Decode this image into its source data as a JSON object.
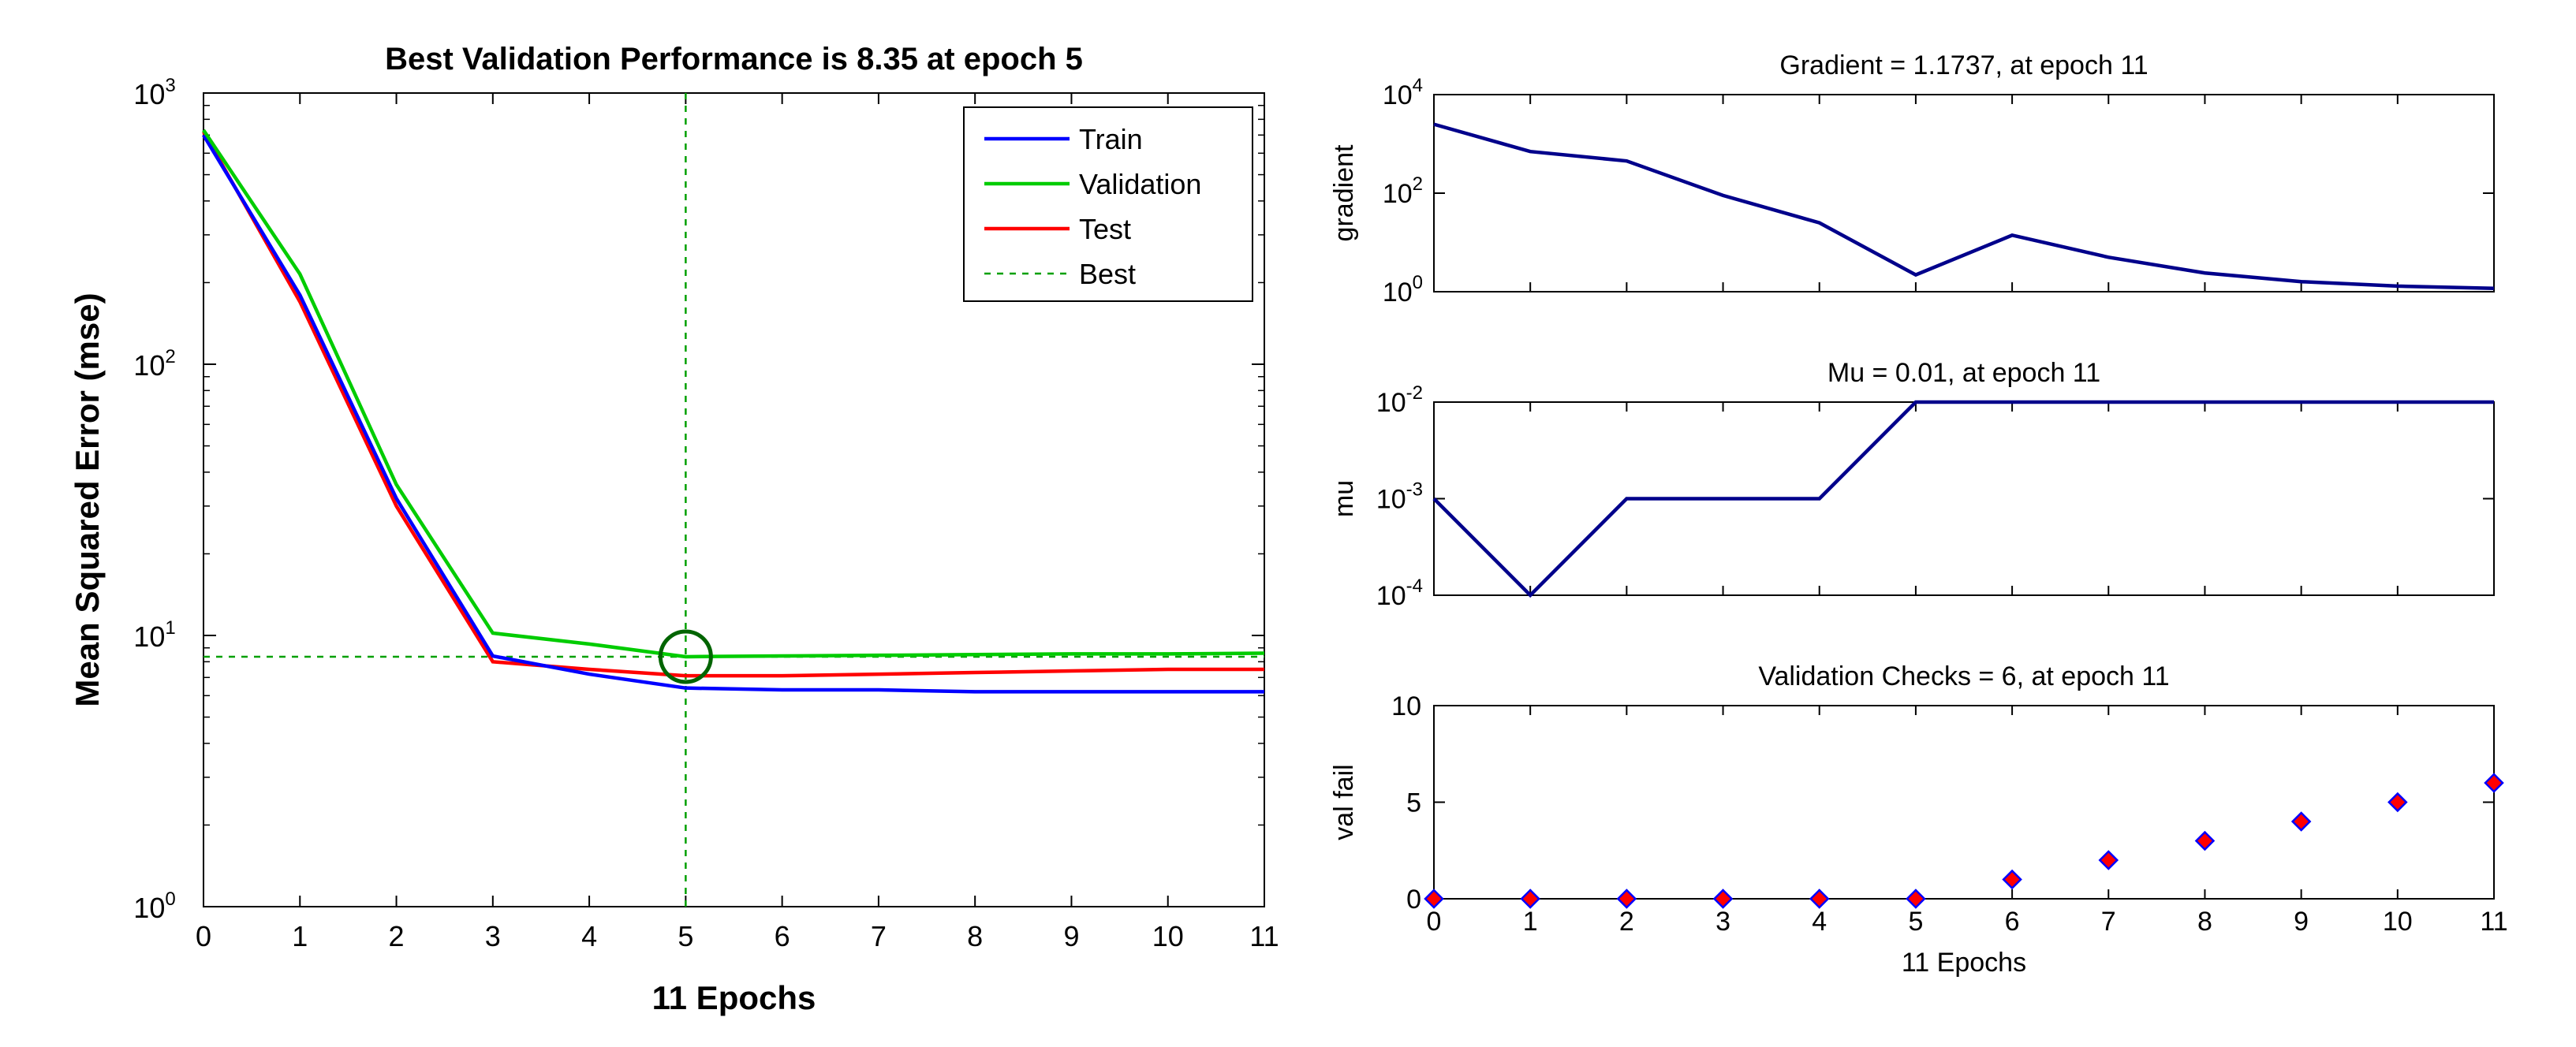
{
  "chart_data": [
    {
      "type": "line",
      "title": "Best Validation Performance is 8.35 at epoch 5",
      "xlabel": "11 Epochs",
      "ylabel": "Mean Squared Error  (mse)",
      "yscale": "log",
      "xlim": [
        0,
        11
      ],
      "ylim": [
        1,
        1000
      ],
      "x_ticks": [
        "0",
        "1",
        "2",
        "3",
        "4",
        "5",
        "6",
        "7",
        "8",
        "9",
        "10",
        "11"
      ],
      "y_ticks": [
        {
          "base": "10",
          "exp": "0",
          "value": 1
        },
        {
          "base": "10",
          "exp": "1",
          "value": 10
        },
        {
          "base": "10",
          "exp": "2",
          "value": 100
        },
        {
          "base": "10",
          "exp": "3",
          "value": 1000
        }
      ],
      "x": [
        0,
        1,
        2,
        3,
        4,
        5,
        6,
        7,
        8,
        9,
        10,
        11
      ],
      "series": [
        {
          "name": "Train",
          "color": "#0000ff",
          "values": [
            700,
            180,
            32,
            8.4,
            7.2,
            6.4,
            6.3,
            6.3,
            6.2,
            6.2,
            6.2,
            6.2
          ]
        },
        {
          "name": "Validation",
          "color": "#00cc00",
          "values": [
            730,
            215,
            36,
            10.2,
            9.3,
            8.35,
            8.4,
            8.45,
            8.5,
            8.55,
            8.55,
            8.6
          ]
        },
        {
          "name": "Test",
          "color": "#ff0000",
          "values": [
            720,
            170,
            30,
            8.0,
            7.5,
            7.1,
            7.1,
            7.2,
            7.3,
            7.4,
            7.5,
            7.5
          ]
        }
      ],
      "best": {
        "name": "Best",
        "color": "#00a000",
        "epoch": 5,
        "value": 8.35
      }
    },
    {
      "type": "line",
      "title": "Gradient = 1.1737, at epoch 11",
      "ylabel": "gradient",
      "yscale": "log",
      "xlim": [
        0,
        11
      ],
      "ylim": [
        1,
        10000
      ],
      "y_ticks": [
        {
          "base": "10",
          "exp": "0",
          "value": 1
        },
        {
          "base": "10",
          "exp": "2",
          "value": 100
        },
        {
          "base": "10",
          "exp": "4",
          "value": 10000
        }
      ],
      "x": [
        0,
        1,
        2,
        3,
        4,
        5,
        6,
        7,
        8,
        9,
        10,
        11
      ],
      "values": [
        2500,
        700,
        450,
        90,
        25,
        2.2,
        14,
        5,
        2.4,
        1.6,
        1.3,
        1.17
      ],
      "color": "#00008b"
    },
    {
      "type": "line",
      "title": "Mu = 0.01, at epoch 11",
      "ylabel": "mu",
      "yscale": "log",
      "xlim": [
        0,
        11
      ],
      "ylim": [
        0.0001,
        0.01
      ],
      "y_ticks": [
        {
          "base": "10",
          "exp": "-4",
          "value": 0.0001
        },
        {
          "base": "10",
          "exp": "-3",
          "value": 0.001
        },
        {
          "base": "10",
          "exp": "-2",
          "value": 0.01
        }
      ],
      "x": [
        0,
        1,
        2,
        3,
        4,
        5,
        6,
        7,
        8,
        9,
        10,
        11
      ],
      "values": [
        0.001,
        0.0001,
        0.001,
        0.001,
        0.001,
        0.01,
        0.01,
        0.01,
        0.01,
        0.01,
        0.01,
        0.01
      ],
      "color": "#00008b"
    },
    {
      "type": "scatter",
      "title": "Validation Checks = 6, at epoch 11",
      "xlabel": "11 Epochs",
      "ylabel": "val fail",
      "xlim": [
        0,
        11
      ],
      "ylim": [
        0,
        10
      ],
      "x_ticks": [
        "0",
        "1",
        "2",
        "3",
        "4",
        "5",
        "6",
        "7",
        "8",
        "9",
        "10",
        "11"
      ],
      "y_ticks": [
        "0",
        "5",
        "10"
      ],
      "x": [
        0,
        1,
        2,
        3,
        4,
        5,
        6,
        7,
        8,
        9,
        10,
        11
      ],
      "values": [
        0,
        0,
        0,
        0,
        0,
        0,
        1,
        2,
        3,
        4,
        5,
        6
      ],
      "marker_fill": "#ff0000",
      "marker_edge": "#0000ff"
    }
  ]
}
